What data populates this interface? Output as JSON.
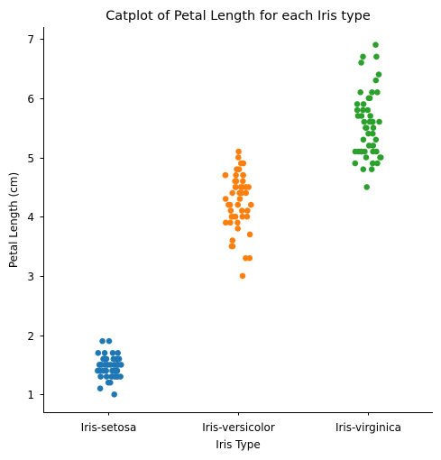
{
  "chart_data": {
    "type": "scatter",
    "title": "Catplot of Petal Length for each Iris type",
    "xlabel": "Iris Type",
    "ylabel": "Petal Length (cm)",
    "categories": [
      "Iris-setosa",
      "Iris-versicolor",
      "Iris-virginica"
    ],
    "ylim": [
      0.7,
      7.2
    ],
    "yticks": [
      1,
      2,
      3,
      4,
      5,
      6,
      7
    ],
    "grid": false,
    "series": [
      {
        "category": "Iris-setosa",
        "color": "#1f77b4",
        "values": [
          1.4,
          1.4,
          1.3,
          1.5,
          1.4,
          1.7,
          1.4,
          1.5,
          1.4,
          1.5,
          1.5,
          1.6,
          1.4,
          1.1,
          1.2,
          1.5,
          1.3,
          1.4,
          1.7,
          1.5,
          1.7,
          1.5,
          1.0,
          1.7,
          1.9,
          1.6,
          1.6,
          1.5,
          1.4,
          1.6,
          1.6,
          1.5,
          1.5,
          1.4,
          1.5,
          1.2,
          1.3,
          1.5,
          1.3,
          1.5,
          1.3,
          1.3,
          1.3,
          1.6,
          1.9,
          1.4,
          1.6,
          1.4,
          1.5,
          1.4
        ]
      },
      {
        "category": "Iris-versicolor",
        "color": "#ff7f0e",
        "values": [
          4.7,
          4.5,
          4.9,
          4.0,
          4.6,
          4.5,
          4.7,
          3.3,
          4.6,
          3.9,
          3.5,
          4.2,
          4.0,
          4.7,
          3.6,
          4.4,
          4.5,
          4.1,
          4.5,
          3.9,
          4.8,
          4.0,
          4.9,
          4.7,
          4.3,
          4.4,
          4.8,
          5.0,
          4.5,
          3.5,
          3.8,
          3.7,
          3.9,
          5.1,
          4.5,
          4.5,
          4.7,
          4.4,
          4.1,
          4.0,
          4.4,
          4.6,
          4.0,
          3.3,
          4.2,
          4.2,
          4.2,
          4.3,
          3.0,
          4.1
        ]
      },
      {
        "category": "Iris-virginica",
        "color": "#2ca02c",
        "values": [
          6.0,
          5.1,
          5.9,
          5.6,
          5.8,
          6.6,
          4.5,
          6.3,
          5.8,
          6.1,
          5.1,
          5.3,
          5.5,
          5.0,
          5.1,
          5.3,
          5.5,
          6.7,
          6.9,
          5.0,
          5.7,
          4.9,
          6.7,
          4.9,
          5.7,
          6.0,
          4.8,
          4.9,
          5.6,
          5.8,
          6.1,
          6.4,
          5.6,
          5.1,
          5.6,
          6.1,
          5.6,
          5.5,
          4.8,
          5.4,
          5.6,
          5.1,
          5.1,
          5.9,
          5.7,
          5.2,
          5.0,
          5.2,
          5.4,
          5.1
        ]
      }
    ]
  }
}
